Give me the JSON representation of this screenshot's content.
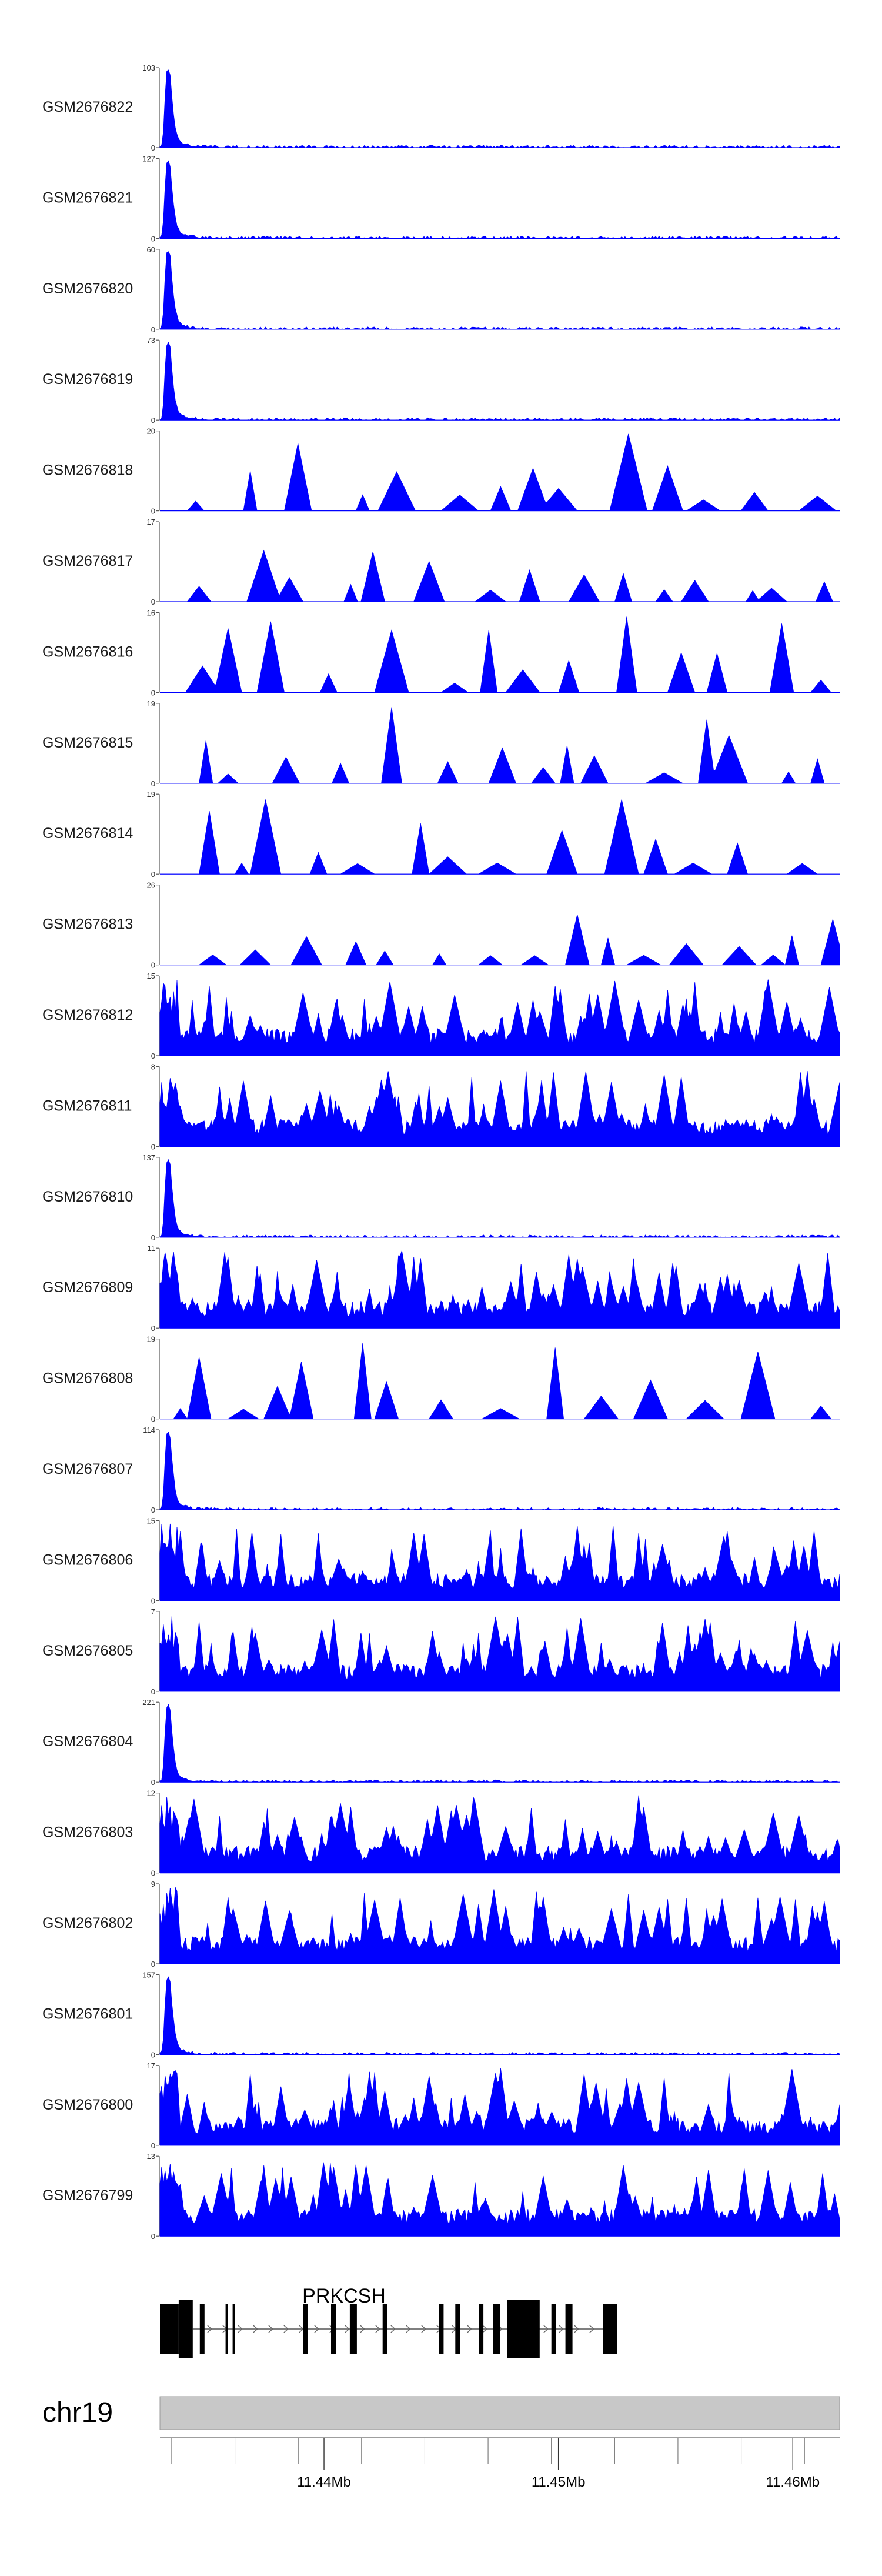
{
  "chart_data": {
    "type": "area",
    "title": "",
    "color": "#0000ff",
    "x_range": [
      11.433,
      11.462
    ],
    "series": [
      {
        "name": "GSM2676822",
        "ymax": 103,
        "profile": "peak"
      },
      {
        "name": "GSM2676821",
        "ymax": 127,
        "profile": "peak"
      },
      {
        "name": "GSM2676820",
        "ymax": 60,
        "profile": "peak"
      },
      {
        "name": "GSM2676819",
        "ymax": 73,
        "profile": "peak"
      },
      {
        "name": "GSM2676818",
        "ymax": 20,
        "profile": "sparse"
      },
      {
        "name": "GSM2676817",
        "ymax": 17,
        "profile": "sparse"
      },
      {
        "name": "GSM2676816",
        "ymax": 16,
        "profile": "sparse"
      },
      {
        "name": "GSM2676815",
        "ymax": 19,
        "profile": "sparse"
      },
      {
        "name": "GSM2676814",
        "ymax": 19,
        "profile": "sparse"
      },
      {
        "name": "GSM2676813",
        "ymax": 26,
        "profile": "sparse"
      },
      {
        "name": "GSM2676812",
        "ymax": 15,
        "profile": "dense"
      },
      {
        "name": "GSM2676811",
        "ymax": 8,
        "profile": "dense"
      },
      {
        "name": "GSM2676810",
        "ymax": 137,
        "profile": "peak"
      },
      {
        "name": "GSM2676809",
        "ymax": 11,
        "profile": "dense"
      },
      {
        "name": "GSM2676808",
        "ymax": 19,
        "profile": "sparse"
      },
      {
        "name": "GSM2676807",
        "ymax": 114,
        "profile": "peak"
      },
      {
        "name": "GSM2676806",
        "ymax": 15,
        "profile": "dense"
      },
      {
        "name": "GSM2676805",
        "ymax": 7,
        "profile": "dense"
      },
      {
        "name": "GSM2676804",
        "ymax": 221,
        "profile": "peak"
      },
      {
        "name": "GSM2676803",
        "ymax": 12,
        "profile": "dense"
      },
      {
        "name": "GSM2676802",
        "ymax": 9,
        "profile": "dense"
      },
      {
        "name": "GSM2676801",
        "ymax": 157,
        "profile": "peak"
      },
      {
        "name": "GSM2676800",
        "ymax": 17,
        "profile": "dense"
      },
      {
        "name": "GSM2676799",
        "ymax": 13,
        "profile": "dense"
      }
    ],
    "gene": {
      "name": "PRKCSH",
      "exons_mb": [
        [
          11.433,
          11.4338
        ],
        [
          11.4338,
          11.4344
        ],
        [
          11.4347,
          11.4349
        ],
        [
          11.4358,
          11.4359
        ],
        [
          11.4361,
          11.4362
        ],
        [
          11.4391,
          11.4393
        ],
        [
          11.4403,
          11.4405
        ],
        [
          11.4411,
          11.4414
        ],
        [
          11.4425,
          11.4427
        ],
        [
          11.4449,
          11.4451
        ],
        [
          11.4456,
          11.4458
        ],
        [
          11.4466,
          11.4468
        ],
        [
          11.4472,
          11.4475
        ],
        [
          11.4478,
          11.4492
        ],
        [
          11.4497,
          11.4499
        ],
        [
          11.4503,
          11.4506
        ],
        [
          11.4519,
          11.4525
        ]
      ],
      "intron_mb": [
        11.4344,
        11.4519
      ]
    },
    "axis": {
      "chromosome": "chr19",
      "tick_labels": [
        "11.44Mb",
        "11.45Mb",
        "11.46Mb"
      ],
      "labeled_ticks_mb": [
        11.44,
        11.45,
        11.46
      ],
      "minor_ticks_mb": [
        11.4335,
        11.4362,
        11.4389,
        11.4416,
        11.4443,
        11.447,
        11.4497,
        11.4524,
        11.4551,
        11.4578,
        11.4605
      ]
    }
  }
}
